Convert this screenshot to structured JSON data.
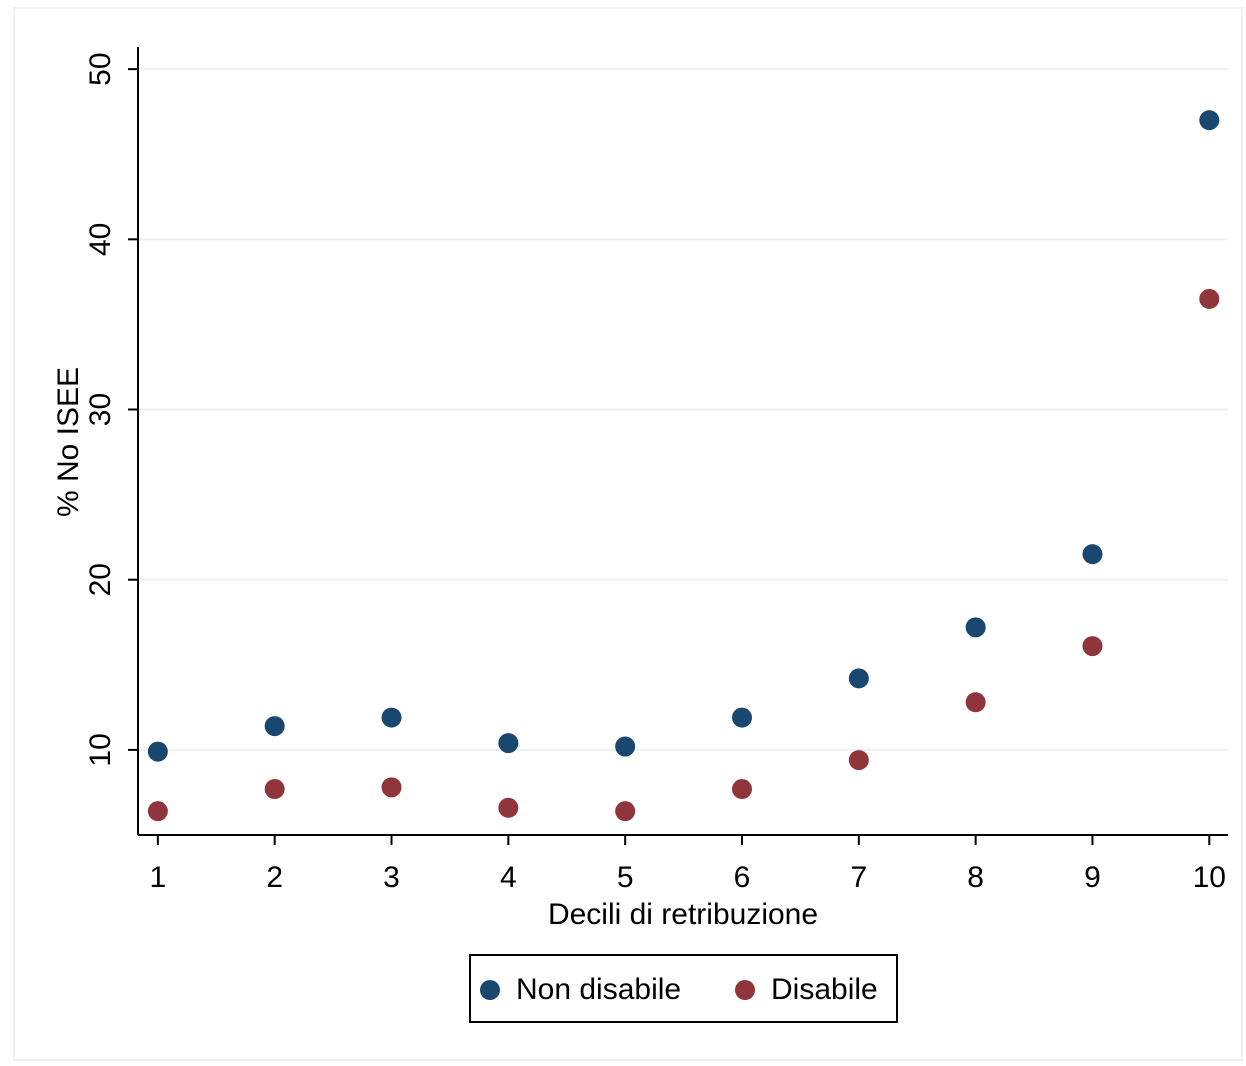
{
  "chart_data": {
    "type": "scatter",
    "x_label": "Decili di retribuzione",
    "y_label": "% No ISEE",
    "x": [
      1,
      2,
      3,
      4,
      5,
      6,
      7,
      8,
      9,
      10
    ],
    "series": [
      {
        "name": "Non disabile",
        "color": "#1a476f",
        "values": [
          9.9,
          11.4,
          11.9,
          10.4,
          10.2,
          11.9,
          14.2,
          17.2,
          21.5,
          47.0
        ]
      },
      {
        "name": "Disabile",
        "color": "#90353b",
        "values": [
          6.4,
          7.7,
          7.8,
          6.6,
          6.4,
          7.7,
          9.4,
          12.8,
          16.1,
          36.5
        ]
      }
    ],
    "xlim": [
      0.83,
      10.16
    ],
    "xticks": [
      1,
      2,
      3,
      4,
      5,
      6,
      7,
      8,
      9,
      10
    ],
    "ylim": [
      5,
      51.3
    ],
    "yticks": [
      10,
      20,
      30,
      40,
      50
    ],
    "grid": true,
    "legend": "bottom"
  }
}
